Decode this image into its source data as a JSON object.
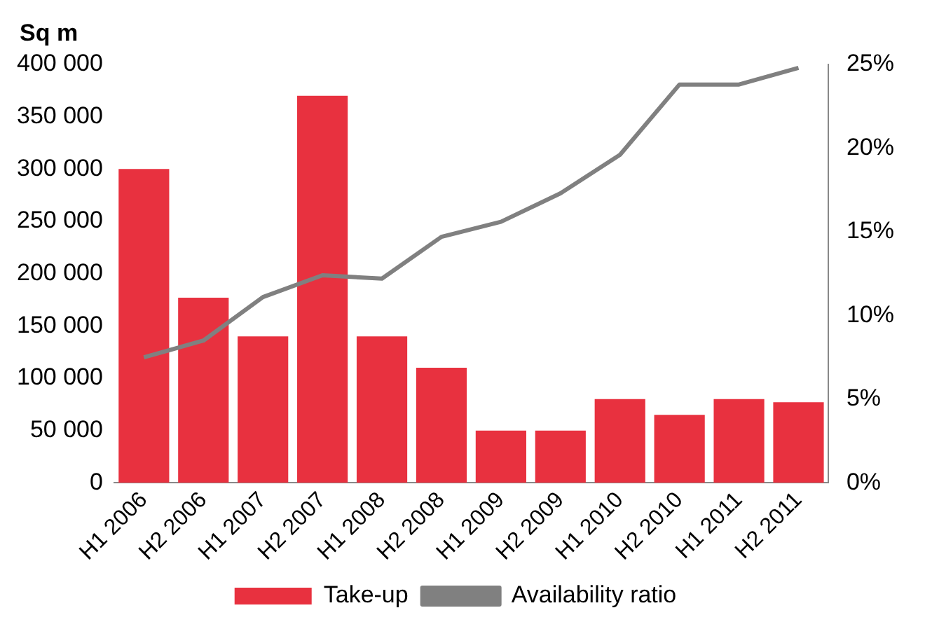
{
  "chart_data": {
    "type": "bar",
    "ylabel": "Sq m",
    "categories": [
      "H1 2006",
      "H2 2006",
      "H1 2007",
      "H2 2007",
      "H1 2008",
      "H2 2008",
      "H1 2009",
      "H2 2009",
      "H1 2010",
      "H2 2010",
      "H1 2011",
      "H2 2011"
    ],
    "series": [
      {
        "name": "Take-up",
        "color": "#e8313f",
        "values": [
          300000,
          177000,
          140000,
          370000,
          140000,
          110000,
          50000,
          50000,
          80000,
          65000,
          80000,
          77000
        ]
      },
      {
        "name": "Availability ratio",
        "type": "line",
        "axis": "y2",
        "color": "#808080",
        "marker": "none",
        "values": [
          7.5,
          8.5,
          11.1,
          12.4,
          12.2,
          14.7,
          15.6,
          17.3,
          19.6,
          23.8,
          23.8,
          24.8
        ]
      }
    ],
    "ylim": [
      0,
      400000
    ],
    "yticks": [
      0,
      {
        "value": 50000,
        "label": "50 000"
      },
      {
        "value": 100000,
        "label": "100 000"
      },
      {
        "value": 150000,
        "label": "150 000"
      },
      {
        "value": 200000,
        "label": "200 000"
      },
      {
        "value": 250000,
        "label": "250 000"
      },
      {
        "value": 300000,
        "label": "300 000"
      },
      {
        "value": 350000,
        "label": "350 000"
      },
      {
        "value": 400000,
        "label": "400 000"
      }
    ],
    "y2lim": [
      0,
      25
    ],
    "y2ticks": [
      {
        "value": 0,
        "label": "0%"
      },
      {
        "value": 5,
        "label": "5%"
      },
      {
        "value": 10,
        "label": "10%"
      },
      {
        "value": 15,
        "label": "15%"
      },
      {
        "value": 20,
        "label": "20%"
      },
      {
        "value": 25,
        "label": "25%"
      }
    ],
    "legend": "bottom",
    "grid": false
  }
}
